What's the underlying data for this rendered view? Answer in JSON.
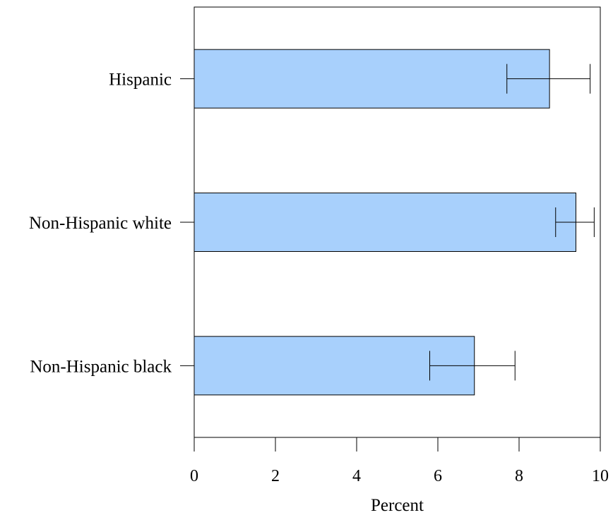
{
  "chart_data": {
    "type": "bar",
    "orientation": "horizontal",
    "categories": [
      "Hispanic",
      "Non-Hispanic white",
      "Non-Hispanic black"
    ],
    "values": [
      8.75,
      9.4,
      6.9
    ],
    "error_low": [
      7.7,
      8.9,
      5.8
    ],
    "error_high": [
      9.75,
      9.85,
      7.9
    ],
    "xlabel": "Percent",
    "ylabel": "",
    "title": "",
    "xlim": [
      0,
      10
    ],
    "xticks": [
      0,
      2,
      4,
      6,
      8,
      10
    ],
    "xtick_labels": [
      "0",
      "2",
      "4",
      "6",
      "8",
      "10"
    ],
    "grid": false,
    "colors": {
      "bar_fill": "#a8d0fc",
      "bar_stroke": "#000000",
      "axis": "#000000",
      "error_bar": "#000000"
    }
  }
}
